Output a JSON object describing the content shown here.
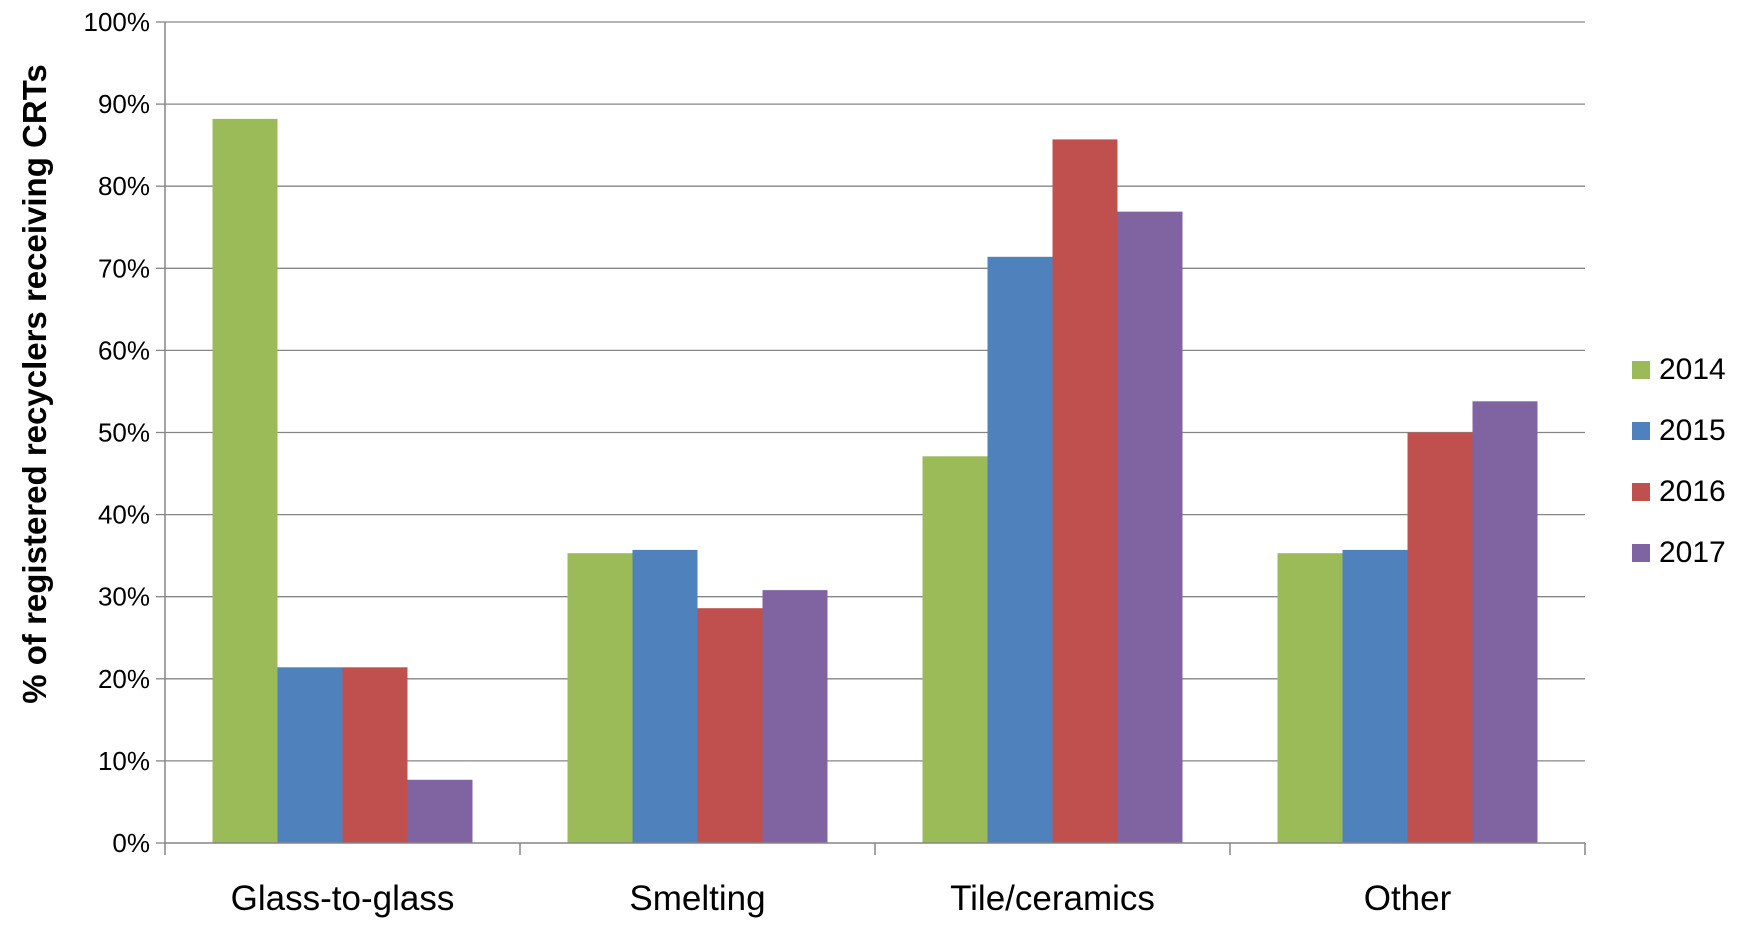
{
  "chart_data": {
    "type": "bar",
    "title": "",
    "xlabel": "",
    "ylabel": "% of registered recyclers receiving CRTs",
    "ylim": [
      0,
      100
    ],
    "yticks": [
      "0%",
      "10%",
      "20%",
      "30%",
      "40%",
      "50%",
      "60%",
      "70%",
      "80%",
      "90%",
      "100%"
    ],
    "grid": true,
    "legend_position": "right",
    "categories": [
      "Glass-to-glass",
      "Smelting",
      "Tile/ceramics",
      "Other"
    ],
    "series": [
      {
        "name": "2014",
        "color": "#9BBB59",
        "values": [
          88.2,
          35.3,
          47.1,
          35.3
        ]
      },
      {
        "name": "2015",
        "color": "#4F81BD",
        "values": [
          21.4,
          35.7,
          71.4,
          35.7
        ]
      },
      {
        "name": "2016",
        "color": "#C0504D",
        "values": [
          21.4,
          28.6,
          85.7,
          50.0
        ]
      },
      {
        "name": "2017",
        "color": "#8064A2",
        "values": [
          7.7,
          30.8,
          76.9,
          53.8
        ]
      }
    ]
  }
}
